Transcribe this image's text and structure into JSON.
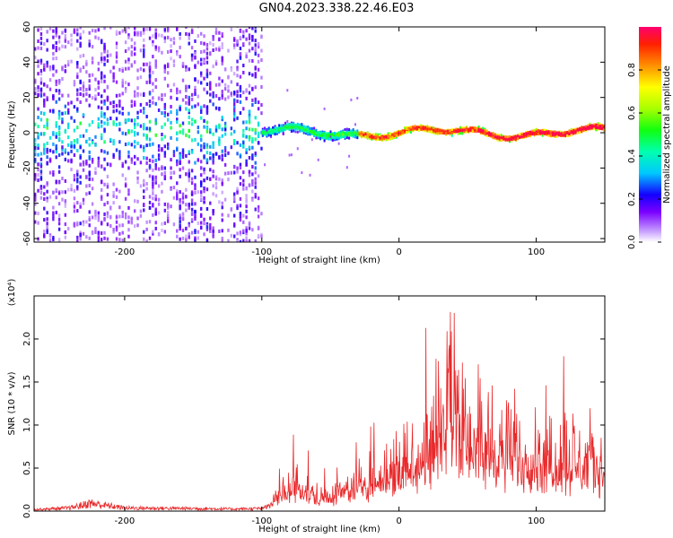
{
  "title": "GN04.2023.338.22.46.E03",
  "colors": {
    "snr_line": "#e8292b",
    "axis": "#000000"
  },
  "chart_data": [
    {
      "type": "heatmap",
      "title": "GN04.2023.338.22.46.E03",
      "xlabel": "Height of straight line (km)",
      "ylabel": "Frequency (Hz)",
      "xlim": [
        -266,
        150
      ],
      "ylim": [
        -62,
        60
      ],
      "x_ticks": [
        -200,
        -100,
        0,
        100
      ],
      "x_tick_labels": [
        "-200",
        "-100",
        "0",
        "100"
      ],
      "y_ticks": [
        60,
        40,
        20,
        0,
        -20,
        -40,
        -60
      ],
      "y_tick_labels": [
        "60",
        "40",
        "20",
        "0",
        "-20",
        "-40",
        "-60"
      ],
      "colorbar": {
        "label": "Normalized spectral amplitude",
        "range": [
          0,
          1
        ],
        "ticks": [
          0.0,
          0.2,
          0.4,
          0.6,
          0.8
        ],
        "tick_labels": [
          "0.0",
          "0.2",
          "0.4",
          "0.6",
          "0.8"
        ]
      },
      "regions": [
        {
          "x_range": [
            -266,
            -100
          ],
          "description_level": 0.25,
          "freq_spread": 60
        },
        {
          "x_range": [
            -100,
            -30
          ],
          "description_level": 0.5,
          "freq_spread": 10
        },
        {
          "x_range": [
            -30,
            150
          ],
          "description_level": 0.9,
          "freq_spread": 4
        }
      ]
    },
    {
      "type": "line",
      "xlabel": "Height of straight line (km)",
      "ylabel": "SNR (10 * v/v)",
      "y_multiplier": "(x10⁴)",
      "xlim": [
        -266,
        150
      ],
      "ylim": [
        0,
        25000
      ],
      "x_ticks": [
        -200,
        -100,
        0,
        100
      ],
      "x_tick_labels": [
        "-200",
        "-100",
        "0",
        "100"
      ],
      "y_ticks": [
        0,
        5000,
        10000,
        15000,
        20000
      ],
      "y_tick_labels": [
        "0.0",
        "0.5",
        "1.0",
        "1.5",
        "2.0"
      ],
      "series": [
        {
          "x": [
            -266,
            -240,
            -225,
            -200,
            -150,
            -120,
            -100,
            -90,
            -75,
            -60,
            -40,
            -20,
            0,
            20,
            30,
            40,
            50,
            60,
            80,
            100,
            120,
            140,
            150
          ],
          "y": [
            300,
            600,
            1500,
            600,
            500,
            400,
            500,
            2000,
            5000,
            2500,
            3500,
            6000,
            8000,
            12000,
            18000,
            22000,
            15000,
            12000,
            11000,
            10000,
            10000,
            9000,
            8000
          ]
        }
      ]
    }
  ]
}
